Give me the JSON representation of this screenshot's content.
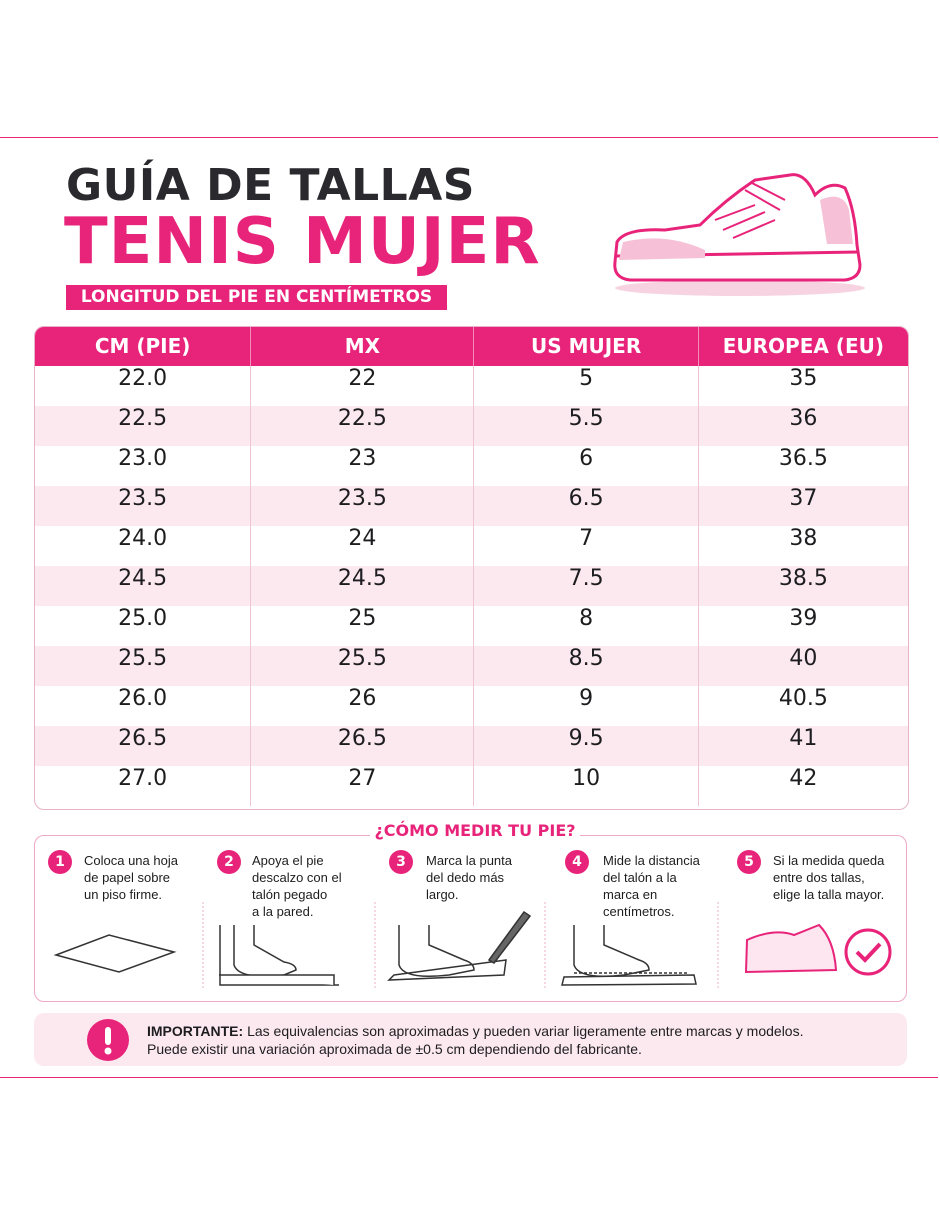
{
  "header": {
    "title": "GUÍA DE TALLAS",
    "subtitle": "TENIS MUJER",
    "badge": "LONGITUD DEL PIE EN CENTÍMETROS"
  },
  "table": {
    "columns": [
      "CM (PIE)",
      "MX",
      "US MUJER",
      "EUROPEA (EU)"
    ],
    "rows": [
      [
        "22.0",
        "22",
        "5",
        "35"
      ],
      [
        "22.5",
        "22.5",
        "5.5",
        "36"
      ],
      [
        "23.0",
        "23",
        "6",
        "36.5"
      ],
      [
        "23.5",
        "23.5",
        "6.5",
        "37"
      ],
      [
        "24.0",
        "24",
        "7",
        "38"
      ],
      [
        "24.5",
        "24.5",
        "7.5",
        "38.5"
      ],
      [
        "25.0",
        "25",
        "8",
        "39"
      ],
      [
        "25.5",
        "25.5",
        "8.5",
        "40"
      ],
      [
        "26.0",
        "26",
        "9",
        "40.5"
      ],
      [
        "26.5",
        "26.5",
        "9.5",
        "41"
      ],
      [
        "27.0",
        "27",
        "10",
        "42"
      ]
    ]
  },
  "measure": {
    "title": "¿CÓMO MEDIR TU PIE?",
    "steps": [
      {
        "number": "1",
        "lines": [
          "Coloca una hoja",
          "de papel sobre",
          "un piso firme."
        ]
      },
      {
        "number": "2",
        "lines": [
          "Apoya el pie",
          "descalzo con el",
          "talón pegado",
          "a la pared."
        ]
      },
      {
        "number": "3",
        "lines": [
          "Marca la punta",
          "del dedo más",
          "largo."
        ]
      },
      {
        "number": "4",
        "lines": [
          "Mide la distancia",
          "del talón a la",
          "marca en",
          "centímetros."
        ]
      },
      {
        "number": "5",
        "lines": [
          "Si la medida queda",
          "entre dos tallas,",
          "elige la talla mayor."
        ]
      }
    ]
  },
  "note": {
    "label": "IMPORTANTE:",
    "lines": [
      "Las equivalencias son aproximadas y pueden variar ligeramente entre marcas y modelos.",
      "Puede existir una variación aproximada de ±0.5 cm dependiendo del fabricante."
    ]
  }
}
